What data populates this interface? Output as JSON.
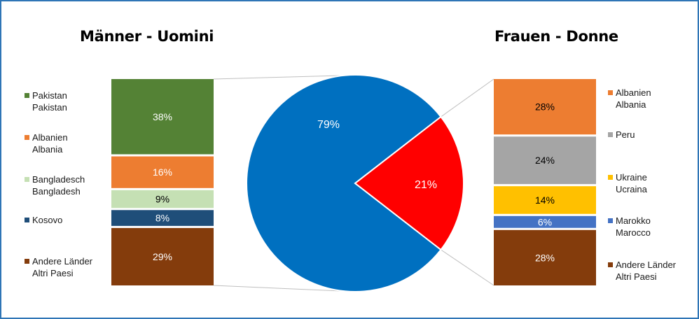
{
  "chart_data": {
    "type": "bar-of-pie",
    "pie": {
      "slices": [
        {
          "label": "79%",
          "value": 79,
          "color": "#0070c0"
        },
        {
          "label": "21%",
          "value": 21,
          "color": "#ff0000"
        }
      ]
    },
    "left": {
      "title": "Männer - Uomini",
      "segments": [
        {
          "legend": [
            "Pakistan",
            "Pakistan"
          ],
          "value": 38,
          "label": "38%",
          "color": "#548235",
          "text_color": "#ffffff"
        },
        {
          "legend": [
            "Albanien",
            "Albania"
          ],
          "value": 16,
          "label": "16%",
          "color": "#ed7d31",
          "text_color": "#ffffff"
        },
        {
          "legend": [
            "Bangladesch",
            "Bangladesh"
          ],
          "value": 9,
          "label": "9%",
          "color": "#c5e0b4",
          "text_color": "#000000"
        },
        {
          "legend": [
            "Kosovo"
          ],
          "value": 8,
          "label": "8%",
          "color": "#1f4e79",
          "text_color": "#ffffff"
        },
        {
          "legend": [
            "Andere Länder",
            "Altri Paesi"
          ],
          "value": 29,
          "label": "29%",
          "color": "#843c0c",
          "text_color": "#ffffff"
        }
      ]
    },
    "right": {
      "title": "Frauen - Donne",
      "segments": [
        {
          "legend": [
            "Albanien",
            "Albania"
          ],
          "value": 28,
          "label": "28%",
          "color": "#ed7d31",
          "text_color": "#000000"
        },
        {
          "legend": [
            "Peru"
          ],
          "value": 24,
          "label": "24%",
          "color": "#a5a5a5",
          "text_color": "#000000"
        },
        {
          "legend": [
            "Ukraine",
            "Ucraina"
          ],
          "value": 14,
          "label": "14%",
          "color": "#ffc000",
          "text_color": "#000000"
        },
        {
          "legend": [
            "Marokko",
            "Marocco"
          ],
          "value": 6,
          "label": "6%",
          "color": "#4472c4",
          "text_color": "#ffffff"
        },
        {
          "legend": [
            "Andere Länder",
            "Altri Paesi"
          ],
          "value": 28,
          "label": "28%",
          "color": "#843c0c",
          "text_color": "#ffffff"
        }
      ]
    }
  }
}
